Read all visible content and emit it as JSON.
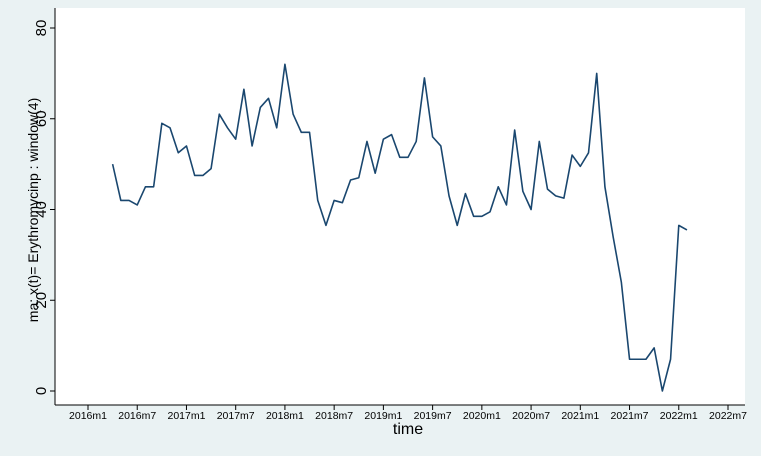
{
  "chart_data": {
    "type": "line",
    "xlabel": "time",
    "ylabel": "ma: x(t)= Erythromycinp : window(4)",
    "x": [
      "2016m4",
      "2016m5",
      "2016m6",
      "2016m7",
      "2016m8",
      "2016m9",
      "2016m10",
      "2016m11",
      "2016m12",
      "2017m1",
      "2017m2",
      "2017m3",
      "2017m4",
      "2017m5",
      "2017m6",
      "2017m7",
      "2017m8",
      "2017m9",
      "2017m10",
      "2017m11",
      "2017m12",
      "2018m1",
      "2018m2",
      "2018m3",
      "2018m4",
      "2018m5",
      "2018m6",
      "2018m7",
      "2018m8",
      "2018m9",
      "2018m10",
      "2018m11",
      "2018m12",
      "2019m1",
      "2019m2",
      "2019m3",
      "2019m4",
      "2019m5",
      "2019m6",
      "2019m7",
      "2019m8",
      "2019m9",
      "2019m10",
      "2019m11",
      "2019m12",
      "2020m1",
      "2020m2",
      "2020m3",
      "2020m4",
      "2020m5",
      "2020m6",
      "2020m7",
      "2020m8",
      "2020m9",
      "2020m10",
      "2020m11",
      "2020m12",
      "2021m1",
      "2021m2",
      "2021m3",
      "2021m4",
      "2021m5",
      "2021m6",
      "2021m7",
      "2021m8",
      "2021m9",
      "2021m10",
      "2021m11",
      "2021m12",
      "2022m1",
      "2022m2"
    ],
    "values": [
      50,
      42,
      42,
      41,
      45,
      45,
      59,
      58,
      52.5,
      54,
      47.5,
      47.5,
      49,
      61,
      58,
      55.5,
      66.5,
      54,
      62.5,
      64.5,
      58,
      72,
      61,
      57,
      57,
      42,
      36.5,
      42,
      41.5,
      46.5,
      47,
      55,
      48,
      55.5,
      56.5,
      51.5,
      51.5,
      55,
      69,
      56,
      54,
      43,
      36.5,
      43.5,
      38.5,
      38.5,
      39.5,
      45,
      41,
      57.5,
      44,
      40,
      55,
      44.5,
      43,
      42.5,
      52,
      49.5,
      52.5,
      70,
      45,
      34,
      24,
      7,
      7,
      7,
      9.5,
      0,
      7,
      36.5,
      35.5
    ],
    "color": "#1a476f",
    "xlim": [
      "2016m1",
      "2022m7"
    ],
    "xticks": [
      "2016m1",
      "2016m7",
      "2017m1",
      "2017m7",
      "2018m1",
      "2018m7",
      "2019m1",
      "2019m7",
      "2020m1",
      "2020m7",
      "2021m1",
      "2021m7",
      "2022m1",
      "2022m7"
    ],
    "ylim": [
      0,
      80
    ],
    "yticks": [
      0,
      20,
      40,
      60,
      80
    ],
    "grid": false
  }
}
